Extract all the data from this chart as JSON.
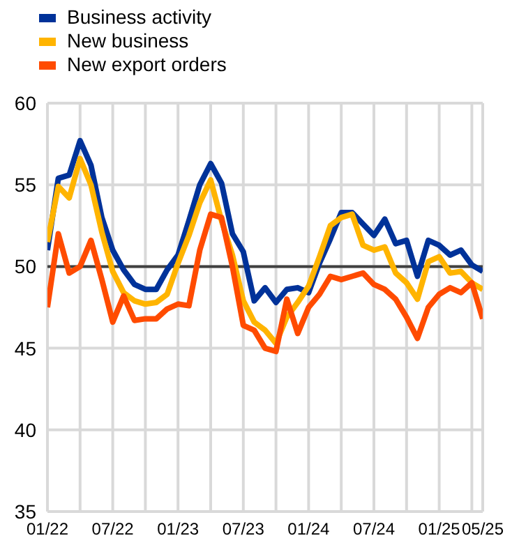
{
  "chart_data": {
    "type": "line",
    "categories": [
      "01/22",
      null,
      null,
      null,
      null,
      null,
      "07/22",
      null,
      null,
      null,
      null,
      null,
      "01/23",
      null,
      null,
      null,
      null,
      null,
      "07/23",
      null,
      null,
      null,
      null,
      null,
      "01/24",
      null,
      null,
      null,
      null,
      null,
      "07/24",
      null,
      null,
      null,
      null,
      null,
      "01/25",
      null,
      null,
      null,
      "05/25"
    ],
    "series": [
      {
        "name": "Business activity",
        "color": "#003299",
        "values": [
          51.0,
          55.4,
          55.6,
          57.7,
          56.2,
          53.0,
          51.0,
          49.8,
          48.9,
          48.6,
          48.6,
          49.8,
          50.7,
          52.8,
          55.0,
          56.3,
          55.1,
          52.0,
          50.9,
          47.9,
          48.7,
          47.8,
          48.6,
          48.7,
          48.4,
          50.2,
          51.7,
          53.3,
          53.3,
          52.6,
          51.9,
          52.9,
          51.4,
          51.6,
          49.4,
          51.6,
          51.3,
          50.7,
          51.0,
          50.1,
          49.7
        ]
      },
      {
        "name": "New business",
        "color": "#ffb400",
        "values": [
          51.5,
          54.9,
          54.2,
          56.6,
          55.0,
          52.1,
          49.7,
          48.4,
          47.9,
          47.7,
          47.8,
          48.3,
          50.2,
          51.9,
          53.9,
          55.3,
          52.8,
          50.7,
          47.9,
          46.6,
          46.1,
          45.3,
          46.9,
          47.8,
          48.8,
          50.6,
          52.5,
          53.0,
          53.2,
          51.3,
          51.0,
          51.2,
          49.6,
          49.0,
          48.0,
          50.3,
          50.6,
          49.6,
          49.7,
          49.0,
          48.6
        ]
      },
      {
        "name": "New export orders",
        "color": "#ff4b00",
        "values": [
          47.5,
          52.0,
          49.6,
          50.0,
          51.6,
          49.2,
          46.6,
          48.2,
          46.7,
          46.8,
          46.8,
          47.4,
          47.7,
          47.6,
          51.0,
          53.2,
          53.0,
          50.0,
          46.4,
          46.1,
          45.0,
          44.8,
          48.0,
          45.9,
          47.5,
          48.3,
          49.4,
          49.2,
          49.4,
          49.6,
          48.9,
          48.6,
          48.0,
          46.9,
          45.6,
          47.5,
          48.3,
          48.7,
          48.4,
          49.0,
          46.8
        ]
      }
    ],
    "ylim": [
      35,
      60
    ],
    "yticks": [
      35,
      40,
      45,
      50,
      55,
      60
    ],
    "ref_lines": [
      {
        "axis": "y",
        "value": 50,
        "color": "#404040"
      }
    ],
    "grid": true,
    "legend": "top left"
  }
}
